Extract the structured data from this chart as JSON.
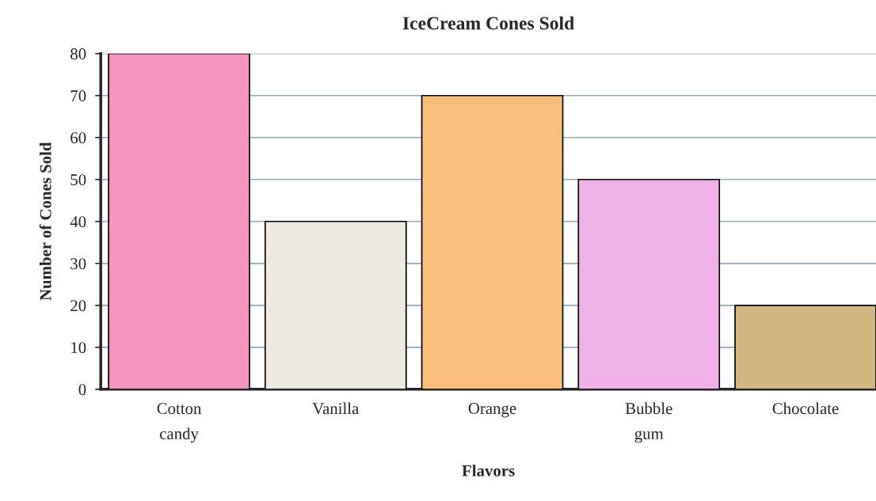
{
  "chart_data": {
    "type": "bar",
    "title": "IceCream Cones Sold",
    "xlabel": "Flavors",
    "ylabel": "Number of Cones Sold",
    "categories": [
      "Cotton candy",
      "Vanilla",
      "Orange",
      "Bubble gum",
      "Chocolate"
    ],
    "values": [
      80,
      40,
      70,
      50,
      20
    ],
    "colors": [
      "#f596c0",
      "#ede8e0",
      "#f9be7b",
      "#f0b0e8",
      "#d2b680"
    ],
    "ylim": [
      0,
      80
    ],
    "yticks": [
      0,
      10,
      20,
      30,
      40,
      50,
      60,
      70,
      80
    ],
    "grid": "y"
  }
}
